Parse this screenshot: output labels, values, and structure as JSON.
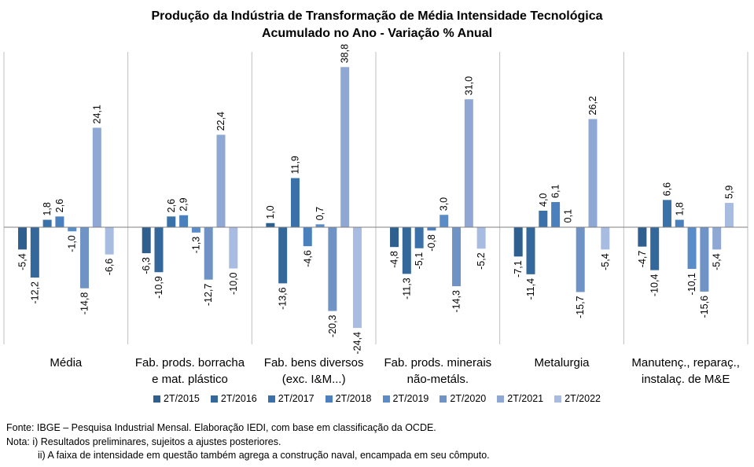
{
  "chart_data": {
    "type": "bar",
    "title": "Produção da Indústria de Transformação de Média Intensidade Tecnológica",
    "subtitle": "Acumulado no Ano - Variação % Anual",
    "categories": [
      [
        "Média"
      ],
      [
        "Fab. prods. borracha",
        "e mat. plástico"
      ],
      [
        "Fab. bens diversos",
        "(exc. I&M...)"
      ],
      [
        "Fab. prods. minerais",
        "não-metáls."
      ],
      [
        "Metalurgia"
      ],
      [
        "Manutenç., reparaç.,",
        "instalaç. de M&E"
      ]
    ],
    "series": [
      {
        "name": "2T/2015",
        "color": "#2e5f8f",
        "values": [
          -5.4,
          -6.3,
          1.0,
          -4.8,
          -7.1,
          -4.7
        ]
      },
      {
        "name": "2T/2016",
        "color": "#34679a",
        "values": [
          -12.2,
          -10.9,
          -13.6,
          -11.3,
          -11.4,
          -10.4
        ]
      },
      {
        "name": "2T/2017",
        "color": "#3a71a8",
        "values": [
          1.8,
          2.6,
          11.9,
          -5.1,
          4.0,
          6.6
        ]
      },
      {
        "name": "2T/2018",
        "color": "#4a80bd",
        "values": [
          2.6,
          2.9,
          -4.6,
          -0.8,
          6.1,
          1.8
        ]
      },
      {
        "name": "2T/2019",
        "color": "#5a8dc8",
        "values": [
          -1.0,
          -1.3,
          0.7,
          3.0,
          0.1,
          -10.1
        ]
      },
      {
        "name": "2T/2020",
        "color": "#6f93c4",
        "values": [
          -14.8,
          -12.7,
          -20.3,
          -14.3,
          -15.7,
          -15.6
        ]
      },
      {
        "name": "2T/2021",
        "color": "#8ea8d3",
        "values": [
          24.1,
          22.4,
          38.8,
          31.0,
          26.2,
          -5.4
        ]
      },
      {
        "name": "2T/2022",
        "color": "#a7bce0",
        "values": [
          -6.6,
          -10.0,
          -24.4,
          -5.2,
          -5.4,
          5.9
        ]
      }
    ],
    "ylim": [
      -27,
      41
    ],
    "grid": false,
    "legend": "bottom"
  },
  "notes": [
    "Fonte: IBGE – Pesquisa Industrial Mensal. Elaboração IEDI, com base em classificação da OCDE.",
    "Nota: i) Resultados preliminares, sujeitos a ajustes posteriores.",
    "ii) A faixa de intensidade em questão também agrega a construção naval, encampada em seu cômputo."
  ]
}
